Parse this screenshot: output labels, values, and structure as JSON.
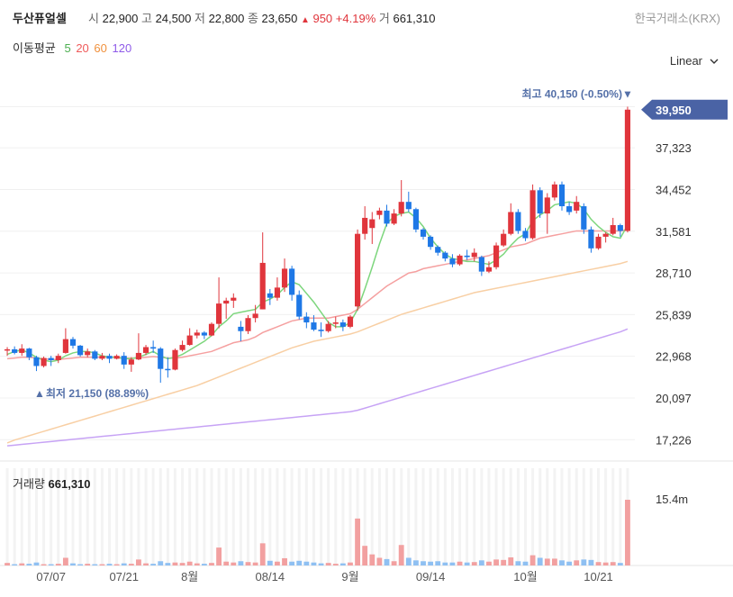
{
  "header": {
    "stock_name": "두산퓨얼셀",
    "open_label": "시",
    "open_value": "22,900",
    "high_label": "고",
    "high_value": "24,500",
    "low_label": "저",
    "low_value": "22,800",
    "close_label": "종",
    "close_value": "23,650",
    "change_arrow": "▲",
    "change_value": "950",
    "change_pct": "+4.19%",
    "volume_label": "거",
    "volume_value": "661,310",
    "exchange": "한국거래소(KRX)"
  },
  "ma_legend": {
    "title": "이동평균",
    "ma5": "5",
    "ma20": "20",
    "ma60": "60",
    "ma120": "120"
  },
  "scale_select": {
    "value": "Linear",
    "icon": "chevron-down-icon"
  },
  "volume_panel": {
    "label": "거래량",
    "value": "661,310"
  },
  "colors": {
    "up": "#e0353c",
    "down": "#1e78e6",
    "ma5": "#7dd67d",
    "ma20": "#f5a0a0",
    "ma60": "#f8cfa4",
    "ma120": "#c7a3f5",
    "tag": "#4a63a5",
    "vol_up": "#f2a0a0",
    "vol_down": "#8fc0f2"
  },
  "chart_data": {
    "type": "candlestick",
    "price_ticks": [
      "37,323",
      "34,452",
      "31,581",
      "28,710",
      "25,839",
      "22,968",
      "20,097",
      "17,226"
    ],
    "price_tick_values": [
      37323,
      34452,
      31581,
      28710,
      25839,
      22968,
      20097,
      17226
    ],
    "price_ylim": [
      16500,
      41300
    ],
    "current_price_tag": "39,950",
    "current_price": 39950,
    "high_annotation": "최고 40,150 (-0.50%)",
    "high_annotation_arrow": "▼",
    "high_value": 40150,
    "low_annotation": "최저 21,150 (88.89%)",
    "low_annotation_arrow": "▲",
    "low_value": 21150,
    "low_index": 21,
    "date_labels": [
      "07/07",
      "07/21",
      "8월",
      "08/14",
      "9월",
      "09/14",
      "10월",
      "10/21"
    ],
    "date_label_indices": [
      6,
      16,
      25,
      36,
      47,
      58,
      71,
      81
    ],
    "volume_max_label": "15.4m",
    "volume_max": 15400000,
    "candles": [
      [
        23400,
        23600,
        23000,
        23450
      ],
      [
        23450,
        23650,
        23100,
        23200
      ],
      [
        23200,
        23800,
        23000,
        23500
      ],
      [
        23500,
        23550,
        22700,
        22900
      ],
      [
        22900,
        23000,
        21950,
        22300
      ],
      [
        22300,
        22950,
        22200,
        22850
      ],
      [
        22850,
        23000,
        22300,
        22700
      ],
      [
        22700,
        23150,
        22500,
        23000
      ],
      [
        23200,
        24900,
        23150,
        24150
      ],
      [
        24150,
        24300,
        23500,
        23700
      ],
      [
        23700,
        23750,
        22950,
        23050
      ],
      [
        23050,
        23500,
        22900,
        23300
      ],
      [
        23300,
        23400,
        22700,
        22800
      ],
      [
        22800,
        23200,
        22700,
        23000
      ],
      [
        23000,
        23150,
        22500,
        22800
      ],
      [
        22800,
        23100,
        22750,
        23000
      ],
      [
        23000,
        23250,
        22100,
        22400
      ],
      [
        22400,
        22900,
        21900,
        22750
      ],
      [
        22750,
        24550,
        22700,
        23200
      ],
      [
        23200,
        23750,
        23050,
        23600
      ],
      [
        23600,
        24050,
        23200,
        23500
      ],
      [
        23500,
        23600,
        21150,
        22100
      ],
      [
        22100,
        22900,
        21500,
        22050
      ],
      [
        22050,
        23500,
        22000,
        23400
      ],
      [
        23400,
        24050,
        23300,
        23750
      ],
      [
        23750,
        24900,
        23700,
        24400
      ],
      [
        24400,
        24800,
        24200,
        24600
      ],
      [
        24600,
        24700,
        24150,
        24400
      ],
      [
        24400,
        25300,
        24350,
        25200
      ],
      [
        25200,
        28400,
        24900,
        26600
      ],
      [
        26600,
        27000,
        25550,
        26800
      ],
      [
        26800,
        27300,
        26300,
        27000
      ],
      [
        25000,
        25400,
        24000,
        24700
      ],
      [
        24700,
        25800,
        24500,
        25600
      ],
      [
        25600,
        26500,
        25300,
        25900
      ],
      [
        26200,
        31500,
        26200,
        29400
      ],
      [
        27300,
        27600,
        26500,
        27000
      ],
      [
        27000,
        28400,
        26800,
        27700
      ],
      [
        27700,
        29700,
        27400,
        29000
      ],
      [
        29000,
        29200,
        26800,
        27200
      ],
      [
        27200,
        27500,
        25500,
        25700
      ],
      [
        25700,
        26000,
        24900,
        25300
      ],
      [
        25300,
        25800,
        24700,
        24800
      ],
      [
        24800,
        25300,
        24300,
        24700
      ],
      [
        24700,
        25400,
        24600,
        25200
      ],
      [
        25200,
        25700,
        24900,
        25300
      ],
      [
        25300,
        25500,
        24700,
        25000
      ],
      [
        25000,
        25800,
        24900,
        25700
      ],
      [
        26400,
        31700,
        26100,
        31400
      ],
      [
        31400,
        33300,
        31000,
        32500
      ],
      [
        31800,
        32900,
        30700,
        32400
      ],
      [
        32700,
        33200,
        32400,
        33000
      ],
      [
        33000,
        33400,
        31900,
        32100
      ],
      [
        32100,
        33100,
        32000,
        32800
      ],
      [
        32800,
        35100,
        32600,
        33600
      ],
      [
        33600,
        34300,
        32900,
        33100
      ],
      [
        33100,
        33200,
        31500,
        31700
      ],
      [
        31700,
        31800,
        31000,
        31200
      ],
      [
        31200,
        31300,
        30300,
        30500
      ],
      [
        30500,
        30600,
        29900,
        30100
      ],
      [
        30100,
        30200,
        29500,
        29700
      ],
      [
        29700,
        30000,
        29100,
        29300
      ],
      [
        29300,
        30000,
        29200,
        29900
      ],
      [
        29900,
        30300,
        29600,
        29800
      ],
      [
        29800,
        30400,
        29500,
        30100
      ],
      [
        29800,
        29900,
        28500,
        28800
      ],
      [
        28800,
        29500,
        28700,
        29100
      ],
      [
        29100,
        30800,
        28950,
        30600
      ],
      [
        30600,
        31700,
        30500,
        31400
      ],
      [
        31400,
        33500,
        31300,
        32900
      ],
      [
        32900,
        33100,
        31400,
        31600
      ],
      [
        31600,
        31800,
        30900,
        31100
      ],
      [
        31100,
        34800,
        31000,
        34400
      ],
      [
        34400,
        34600,
        32500,
        32800
      ],
      [
        32800,
        34200,
        31400,
        33900
      ],
      [
        33900,
        35000,
        33700,
        34800
      ],
      [
        34800,
        35000,
        33000,
        33300
      ],
      [
        33300,
        33600,
        32700,
        32900
      ],
      [
        33000,
        34000,
        32800,
        33600
      ],
      [
        33300,
        33500,
        31400,
        31700
      ],
      [
        31700,
        31900,
        30100,
        30400
      ],
      [
        30400,
        31400,
        30300,
        31200
      ],
      [
        31200,
        31500,
        30800,
        31400
      ],
      [
        31400,
        32500,
        31300,
        32000
      ],
      [
        32000,
        32100,
        31200,
        31600
      ],
      [
        31600,
        40150,
        31500,
        39950
      ]
    ],
    "ma5": [
      23100,
      23300,
      23400,
      23200,
      22900,
      22700,
      22600,
      22700,
      23000,
      23200,
      23300,
      23300,
      23200,
      23000,
      22900,
      22900,
      22800,
      22800,
      22900,
      23100,
      23300,
      23000,
      22800,
      22900,
      23100,
      23400,
      23700,
      24000,
      24400,
      25000,
      25400,
      25900,
      26000,
      26100,
      26200,
      26700,
      26900,
      27200,
      27700,
      28100,
      27900,
      27300,
      26700,
      26000,
      25300,
      25000,
      25000,
      25300,
      26200,
      27600,
      29100,
      30700,
      32100,
      32600,
      32800,
      32900,
      32500,
      31900,
      31100,
      30500,
      30000,
      29700,
      29600,
      29500,
      29500,
      29400,
      29300,
      29600,
      30000,
      30600,
      31100,
      31400,
      32300,
      32700,
      33000,
      33400,
      33500,
      33600,
      33500,
      33100,
      32400,
      31900,
      31500,
      31200,
      31100,
      32000
    ],
    "ma20": [
      22800,
      22850,
      22900,
      22900,
      22850,
      22800,
      22750,
      22750,
      22800,
      22850,
      22900,
      22900,
      22900,
      22900,
      22900,
      22900,
      22850,
      22850,
      22850,
      22900,
      22950,
      22900,
      22850,
      22850,
      22900,
      23000,
      23100,
      23200,
      23300,
      23500,
      23700,
      23900,
      24000,
      24100,
      24300,
      24600,
      24800,
      25000,
      25200,
      25400,
      25500,
      25600,
      25600,
      25600,
      25600,
      25700,
      25800,
      25900,
      26200,
      26600,
      27000,
      27400,
      27800,
      28100,
      28400,
      28700,
      28800,
      29000,
      29100,
      29200,
      29300,
      29400,
      29500,
      29600,
      29700,
      29800,
      29900,
      30100,
      30300,
      30500,
      30600,
      30700,
      30900,
      31100,
      31200,
      31300,
      31400,
      31500,
      31600,
      31600,
      31600,
      31600,
      31600,
      31600,
      31600,
      31700
    ],
    "ma60": [
      17000,
      17200,
      17350,
      17500,
      17650,
      17800,
      17950,
      18100,
      18250,
      18400,
      18550,
      18700,
      18850,
      19000,
      19150,
      19300,
      19450,
      19600,
      19750,
      19900,
      20050,
      20200,
      20350,
      20500,
      20650,
      20800,
      20950,
      21150,
      21350,
      21550,
      21750,
      21950,
      22150,
      22350,
      22550,
      22750,
      22950,
      23150,
      23350,
      23550,
      23700,
      23850,
      24000,
      24100,
      24200,
      24300,
      24400,
      24500,
      24650,
      24850,
      25050,
      25250,
      25450,
      25650,
      25850,
      26000,
      26150,
      26300,
      26450,
      26600,
      26750,
      26900,
      27050,
      27200,
      27350,
      27450,
      27550,
      27650,
      27750,
      27850,
      27950,
      28050,
      28150,
      28250,
      28350,
      28450,
      28550,
      28650,
      28750,
      28850,
      28950,
      29050,
      29150,
      29250,
      29350,
      29500
    ],
    "ma120": [
      16800,
      16850,
      16900,
      16950,
      17000,
      17050,
      17100,
      17150,
      17200,
      17250,
      17300,
      17350,
      17400,
      17450,
      17500,
      17550,
      17600,
      17650,
      17700,
      17750,
      17800,
      17850,
      17900,
      17950,
      18000,
      18050,
      18100,
      18150,
      18200,
      18250,
      18300,
      18350,
      18400,
      18450,
      18500,
      18550,
      18600,
      18650,
      18700,
      18750,
      18800,
      18850,
      18900,
      18950,
      19000,
      19050,
      19100,
      19150,
      19250,
      19400,
      19550,
      19700,
      19850,
      20000,
      20150,
      20300,
      20450,
      20600,
      20750,
      20900,
      21050,
      21200,
      21350,
      21500,
      21650,
      21800,
      21950,
      22100,
      22250,
      22400,
      22550,
      22700,
      22850,
      23000,
      23150,
      23300,
      23450,
      23600,
      23750,
      23900,
      24050,
      24200,
      24350,
      24500,
      24650,
      24850
    ],
    "volumes": [
      600000,
      300000,
      500000,
      400000,
      700000,
      300000,
      300000,
      400000,
      1800000,
      500000,
      300000,
      400000,
      300000,
      300000,
      400000,
      300000,
      500000,
      400000,
      1400000,
      500000,
      400000,
      1000000,
      600000,
      700000,
      600000,
      900000,
      500000,
      400000,
      600000,
      4200000,
      900000,
      700000,
      1000000,
      800000,
      700000,
      5200000,
      1100000,
      900000,
      1700000,
      900000,
      1100000,
      900000,
      700000,
      500000,
      600000,
      400000,
      500000,
      700000,
      11000000,
      4600000,
      2600000,
      1800000,
      1500000,
      1000000,
      4800000,
      1800000,
      1200000,
      1000000,
      900000,
      1000000,
      700000,
      700000,
      900000,
      700000,
      800000,
      1200000,
      900000,
      1400000,
      1300000,
      1900000,
      1000000,
      900000,
      2400000,
      1800000,
      1600000,
      1600000,
      1200000,
      900000,
      1200000,
      1400000,
      1300000,
      800000,
      700000,
      800000,
      600000,
      15400000
    ]
  }
}
